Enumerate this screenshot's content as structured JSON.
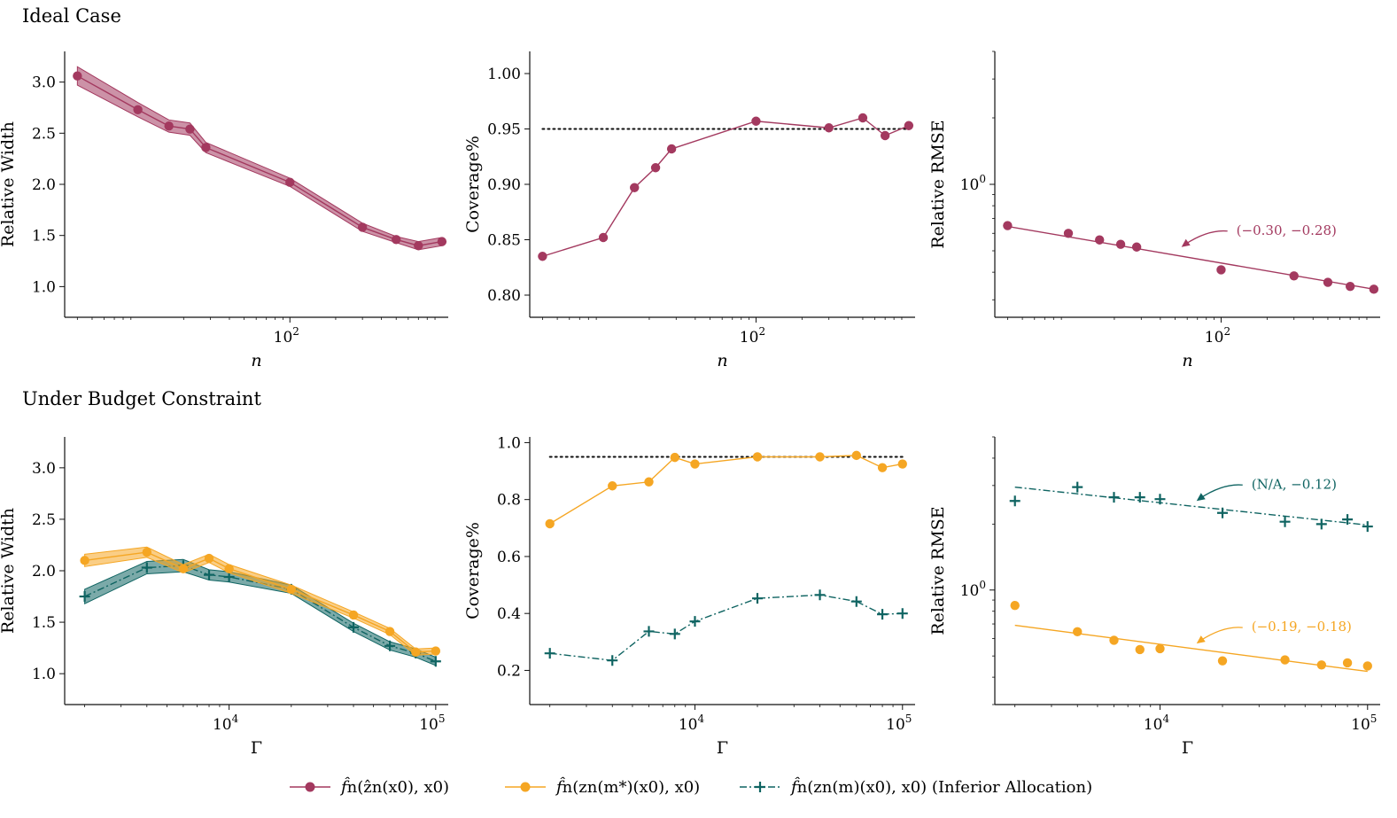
{
  "rows": [
    {
      "title": "Ideal Case"
    },
    {
      "title": "Under Budget Constraint"
    }
  ],
  "colors": {
    "purple": "#a3395f",
    "orange": "#f5a623",
    "teal": "#0f6462"
  },
  "legend": [
    {
      "marker": "circle",
      "color": "#a3395f",
      "label_base": "f̂",
      "label_rest": "n(ẑn(x0), x0)"
    },
    {
      "marker": "circle",
      "color": "#f5a623",
      "label_base": "f̂",
      "label_rest": "n(zn(m*)(x0), x0)"
    },
    {
      "marker": "plus",
      "color": "#0f6462",
      "label_base": "f̂",
      "label_rest": "n(zn(m)(x0), x0) (Inferior Allocation)"
    }
  ],
  "chart_data": [
    {
      "id": "ideal-width",
      "type": "line",
      "xscale": "log",
      "xlim": [
        3.3,
        1100
      ],
      "xlabel": "n",
      "ylabel": "Relative Width",
      "ylim": [
        0.7,
        3.3
      ],
      "xticks": [
        {
          "v": 100,
          "base": "10",
          "exp": "2"
        }
      ],
      "yticks": [
        "1.0",
        "1.5",
        "2.0",
        "2.5",
        "3.0"
      ],
      "series": [
        {
          "color": "#a3395f",
          "marker": "circle",
          "style": "solid",
          "x": [
            4,
            10,
            16,
            22,
            28,
            100,
            300,
            500,
            700,
            1000
          ],
          "y": [
            3.06,
            2.73,
            2.57,
            2.54,
            2.36,
            2.02,
            1.58,
            1.46,
            1.4,
            1.44
          ],
          "band": [
            0.09,
            0.07,
            0.06,
            0.06,
            0.05,
            0.04,
            0.04,
            0.03,
            0.04,
            0.04
          ]
        }
      ]
    },
    {
      "id": "ideal-coverage",
      "type": "line",
      "xscale": "log",
      "xlim": [
        3.3,
        1100
      ],
      "xlabel": "n",
      "ylabel": "Coverage%",
      "ylim": [
        0.78,
        1.02
      ],
      "xticks": [
        {
          "v": 100,
          "base": "10",
          "exp": "2"
        }
      ],
      "yticks": [
        "0.80",
        "0.85",
        "0.90",
        "0.95",
        "1.00"
      ],
      "reference": 0.95,
      "series": [
        {
          "color": "#a3395f",
          "marker": "circle",
          "style": "solid",
          "x": [
            4,
            10,
            16,
            22,
            28,
            100,
            300,
            500,
            700,
            1000
          ],
          "y": [
            0.835,
            0.852,
            0.897,
            0.915,
            0.932,
            0.957,
            0.951,
            0.96,
            0.944,
            0.953
          ]
        }
      ]
    },
    {
      "id": "ideal-rmse",
      "type": "scatter",
      "xscale": "log",
      "yscale": "log",
      "xlim": [
        3.3,
        1100
      ],
      "xlabel": "n",
      "ylabel": "Relative RMSE",
      "ylim": [
        0.25,
        4.0
      ],
      "xticks": [
        {
          "v": 100,
          "base": "10",
          "exp": "2"
        }
      ],
      "yticks": [
        {
          "v": 1,
          "base": "10",
          "exp": "0"
        }
      ],
      "annotations": [
        {
          "text": "(−0.30, −0.28)",
          "color": "#a3395f",
          "target": [
            55,
            0.52
          ]
        }
      ],
      "series": [
        {
          "color": "#a3395f",
          "marker": "circle",
          "fit": true,
          "x": [
            4,
            10,
            16,
            22,
            28,
            100,
            300,
            500,
            700,
            1000
          ],
          "y": [
            0.65,
            0.6,
            0.56,
            0.535,
            0.52,
            0.41,
            0.385,
            0.36,
            0.345,
            0.335
          ],
          "fit_line": [
            [
              4,
              0.645
            ],
            [
              1000,
              0.335
            ]
          ]
        }
      ]
    },
    {
      "id": "budget-width",
      "type": "line",
      "xscale": "log",
      "xlim": [
        1600,
        115000
      ],
      "xlabel": "Γ",
      "ylabel": "Relative Width",
      "ylim": [
        0.7,
        3.3
      ],
      "xticks": [
        {
          "v": 10000,
          "base": "10",
          "exp": "4"
        },
        {
          "v": 100000,
          "base": "10",
          "exp": "5"
        }
      ],
      "yticks": [
        "1.0",
        "1.5",
        "2.0",
        "2.5",
        "3.0"
      ],
      "series": [
        {
          "color": "#0f6462",
          "marker": "plus",
          "style": "dashdot",
          "x": [
            2000,
            4000,
            6000,
            8000,
            10000,
            20000,
            40000,
            60000,
            80000,
            100000
          ],
          "y": [
            1.75,
            2.03,
            2.05,
            1.96,
            1.94,
            1.82,
            1.45,
            1.27,
            1.2,
            1.12
          ],
          "band": [
            0.07,
            0.06,
            0.06,
            0.05,
            0.05,
            0.04,
            0.04,
            0.04,
            0.04,
            0.04
          ]
        },
        {
          "color": "#f5a623",
          "marker": "circle",
          "style": "solid",
          "x": [
            2000,
            4000,
            6000,
            8000,
            10000,
            20000,
            40000,
            60000,
            80000,
            100000
          ],
          "y": [
            2.1,
            2.18,
            2.02,
            2.12,
            2.02,
            1.82,
            1.57,
            1.41,
            1.21,
            1.22
          ],
          "band": [
            0.06,
            0.05,
            0.04,
            0.04,
            0.04,
            0.04,
            0.03,
            0.03,
            0.03,
            0.03
          ]
        }
      ]
    },
    {
      "id": "budget-coverage",
      "type": "line",
      "xscale": "log",
      "xlim": [
        1600,
        115000
      ],
      "xlabel": "Γ",
      "ylabel": "Coverage%",
      "ylim": [
        0.08,
        1.02
      ],
      "xticks": [
        {
          "v": 10000,
          "base": "10",
          "exp": "4"
        },
        {
          "v": 100000,
          "base": "10",
          "exp": "5"
        }
      ],
      "yticks": [
        "0.2",
        "0.4",
        "0.6",
        "0.8",
        "1.0"
      ],
      "reference": 0.95,
      "series": [
        {
          "color": "#f5a623",
          "marker": "circle",
          "style": "solid",
          "x": [
            2000,
            4000,
            6000,
            8000,
            10000,
            20000,
            40000,
            60000,
            80000,
            100000
          ],
          "y": [
            0.715,
            0.848,
            0.862,
            0.948,
            0.925,
            0.95,
            0.95,
            0.955,
            0.912,
            0.925
          ]
        },
        {
          "color": "#0f6462",
          "marker": "plus",
          "style": "dashdot",
          "x": [
            2000,
            4000,
            6000,
            8000,
            10000,
            20000,
            40000,
            60000,
            80000,
            100000
          ],
          "y": [
            0.26,
            0.235,
            0.337,
            0.328,
            0.372,
            0.453,
            0.465,
            0.442,
            0.397,
            0.4
          ]
        }
      ]
    },
    {
      "id": "budget-rmse",
      "type": "scatter",
      "xscale": "log",
      "yscale": "log",
      "xlim": [
        1600,
        115000
      ],
      "xlabel": "Γ",
      "ylabel": "Relative RMSE",
      "ylim": [
        0.3,
        5.0
      ],
      "xticks": [
        {
          "v": 10000,
          "base": "10",
          "exp": "4"
        },
        {
          "v": 100000,
          "base": "10",
          "exp": "5"
        }
      ],
      "yticks": [
        {
          "v": 1,
          "base": "10",
          "exp": "0"
        }
      ],
      "annotations": [
        {
          "text": "(N/A, −0.12)",
          "color": "#0f6462",
          "target": [
            15000,
            2.55
          ]
        },
        {
          "text": "(−0.19, −0.18)",
          "color": "#f5a623",
          "target": [
            15000,
            0.57
          ]
        }
      ],
      "series": [
        {
          "color": "#0f6462",
          "marker": "plus",
          "fit": true,
          "x": [
            2000,
            4000,
            6000,
            8000,
            10000,
            20000,
            40000,
            60000,
            80000,
            100000
          ],
          "y": [
            2.55,
            2.95,
            2.65,
            2.65,
            2.6,
            2.25,
            2.05,
            2.0,
            2.1,
            1.95
          ],
          "fit_line": [
            [
              2000,
              2.95
            ],
            [
              100000,
              1.98
            ]
          ]
        },
        {
          "color": "#f5a623",
          "marker": "circle",
          "fit": true,
          "x": [
            2000,
            4000,
            6000,
            8000,
            10000,
            20000,
            40000,
            60000,
            80000,
            100000
          ],
          "y": [
            0.85,
            0.645,
            0.59,
            0.535,
            0.54,
            0.475,
            0.48,
            0.455,
            0.465,
            0.45
          ],
          "fit_line": [
            [
              2000,
              0.69
            ],
            [
              100000,
              0.425
            ]
          ]
        }
      ]
    }
  ]
}
